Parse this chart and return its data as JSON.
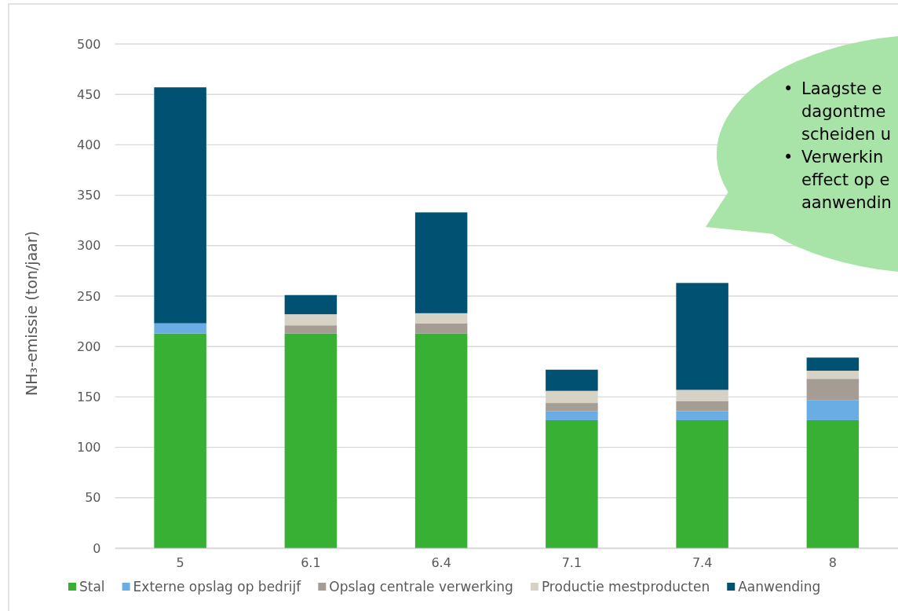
{
  "chart_data": {
    "type": "bar",
    "stacked": true,
    "ylabel": "NH₃-emissie (ton/jaar)",
    "categories": [
      "5",
      "6.1",
      "6.4",
      "7.1",
      "7.4",
      "8"
    ],
    "series": [
      {
        "name": "Stal",
        "color": "#37b034",
        "values": [
          213,
          213,
          213,
          127,
          127,
          127
        ]
      },
      {
        "name": "Externe opslag op bedrijf",
        "color": "#6aade4",
        "values": [
          10,
          0,
          0,
          9,
          9,
          20
        ]
      },
      {
        "name": "Opslag centrale verwerking",
        "color": "#a59c94",
        "values": [
          0,
          8,
          10,
          8,
          10,
          21
        ]
      },
      {
        "name": "Productie mestproducten",
        "color": "#d6d2c4",
        "values": [
          0,
          11,
          10,
          12,
          11,
          8
        ]
      },
      {
        "name": "Aanwending",
        "color": "#005172",
        "values": [
          234,
          19,
          100,
          21,
          106,
          13
        ]
      }
    ],
    "ylim": [
      0,
      500
    ],
    "yticks": [
      0,
      50,
      100,
      150,
      200,
      250,
      300,
      350,
      400,
      450,
      500
    ],
    "grid": "y",
    "legend": "bottom",
    "annotations": [
      "• Laagste e\ndagontme\nscheiden u",
      "• Verwerkin\neffect op e\naanwendin"
    ]
  }
}
